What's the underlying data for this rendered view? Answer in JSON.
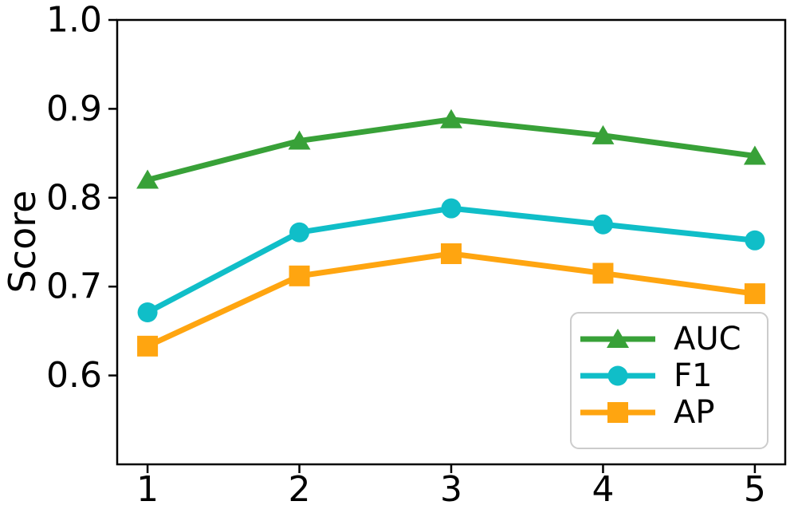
{
  "chart_data": {
    "type": "line",
    "title": "",
    "xlabel": "",
    "ylabel": "Score",
    "x": [
      1,
      2,
      3,
      4,
      5
    ],
    "series": [
      {
        "name": "AUC",
        "marker": "triangle",
        "color": "#38a138",
        "values": [
          0.82,
          0.864,
          0.888,
          0.87,
          0.847
        ]
      },
      {
        "name": "F1",
        "marker": "circle",
        "color": "#10bec8",
        "values": [
          0.671,
          0.761,
          0.788,
          0.77,
          0.752
        ]
      },
      {
        "name": "AP",
        "marker": "square",
        "color": "#ffa510",
        "values": [
          0.633,
          0.712,
          0.737,
          0.715,
          0.692
        ]
      }
    ],
    "xlim": [
      0.8,
      5.2
    ],
    "ylim": [
      0.5,
      1.0
    ],
    "xticks": {
      "values": [
        1,
        2,
        3,
        4,
        5
      ],
      "labels": [
        "1",
        "2",
        "3",
        "4",
        "5"
      ]
    },
    "yticks": {
      "values": [
        0.6,
        0.7,
        0.8,
        0.9,
        1.0
      ],
      "labels": [
        "0.6",
        "0.7",
        "0.8",
        "0.9",
        "1.0"
      ]
    },
    "grid": false,
    "legend": {
      "position": "lower right",
      "entries": [
        "AUC",
        "F1",
        "AP"
      ]
    },
    "colors": {
      "axis": "#000000",
      "background": "#ffffff",
      "legend_border": "#cccccc",
      "legend_fill": "#ffffff"
    }
  }
}
